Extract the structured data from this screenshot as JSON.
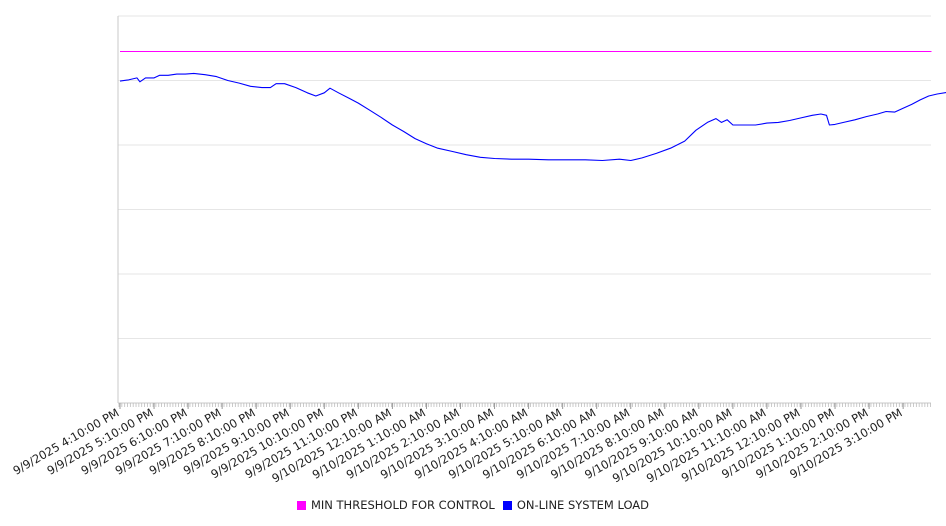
{
  "chart_data": {
    "type": "line",
    "title": "",
    "xlabel": "",
    "ylabel": "",
    "ylim": [
      0,
      6
    ],
    "grid": true,
    "legend_position": "bottom",
    "x_ticks": [
      "9/9/2025 4:10:00 PM",
      "9/9/2025 5:10:00 PM",
      "9/9/2025 6:10:00 PM",
      "9/9/2025 7:10:00 PM",
      "9/9/2025 8:10:00 PM",
      "9/9/2025 9:10:00 PM",
      "9/9/2025 10:10:00 PM",
      "9/9/2025 11:10:00 PM",
      "9/10/2025 12:10:00 AM",
      "9/10/2025 1:10:00 AM",
      "9/10/2025 2:10:00 AM",
      "9/10/2025 3:10:00 AM",
      "9/10/2025 4:10:00 AM",
      "9/10/2025 5:10:00 AM",
      "9/10/2025 6:10:00 AM",
      "9/10/2025 7:10:00 AM",
      "9/10/2025 8:10:00 AM",
      "9/10/2025 9:10:00 AM",
      "9/10/2025 10:10:00 AM",
      "9/10/2025 11:10:00 AM",
      "9/10/2025 12:10:00 PM",
      "9/10/2025 1:10:00 PM",
      "9/10/2025 2:10:00 PM",
      "9/10/2025 3:10:00 PM"
    ],
    "x_range": [
      "9/9/2025 4:10:00 PM",
      "9/10/2025 4:00:00 PM"
    ],
    "series": [
      {
        "name": "MIN THRESHOLD FOR CONTROL",
        "color": "#ff00ff",
        "points": [
          [
            "9/9/2025 4:10:00 PM",
            5.45
          ],
          [
            "9/10/2025 4:00:00 PM",
            5.45
          ]
        ]
      },
      {
        "name": "ON-LINE SYSTEM LOAD",
        "color": "#0000ff",
        "points": [
          [
            "9/9/2025 4:10:00 PM",
            4.99
          ],
          [
            "9/9/2025 4:25:00 PM",
            5.01
          ],
          [
            "9/9/2025 4:40:00 PM",
            5.04
          ],
          [
            "9/9/2025 4:45:00 PM",
            4.98
          ],
          [
            "9/9/2025 4:55:00 PM",
            5.04
          ],
          [
            "9/9/2025 5:10:00 PM",
            5.04
          ],
          [
            "9/9/2025 5:20:00 PM",
            5.08
          ],
          [
            "9/9/2025 5:35:00 PM",
            5.08
          ],
          [
            "9/9/2025 5:50:00 PM",
            5.1
          ],
          [
            "9/9/2025 6:05:00 PM",
            5.1
          ],
          [
            "9/9/2025 6:20:00 PM",
            5.11
          ],
          [
            "9/9/2025 6:40:00 PM",
            5.09
          ],
          [
            "9/9/2025 7:00:00 PM",
            5.06
          ],
          [
            "9/9/2025 7:20:00 PM",
            5.0
          ],
          [
            "9/9/2025 7:40:00 PM",
            4.96
          ],
          [
            "9/9/2025 8:00:00 PM",
            4.91
          ],
          [
            "9/9/2025 8:20:00 PM",
            4.89
          ],
          [
            "9/9/2025 8:35:00 PM",
            4.89
          ],
          [
            "9/9/2025 8:45:00 PM",
            4.95
          ],
          [
            "9/9/2025 9:00:00 PM",
            4.95
          ],
          [
            "9/9/2025 9:20:00 PM",
            4.89
          ],
          [
            "9/9/2025 9:40:00 PM",
            4.81
          ],
          [
            "9/9/2025 9:55:00 PM",
            4.76
          ],
          [
            "9/9/2025 10:10:00 PM",
            4.81
          ],
          [
            "9/9/2025 10:20:00 PM",
            4.88
          ],
          [
            "9/9/2025 10:35:00 PM",
            4.81
          ],
          [
            "9/9/2025 10:55:00 PM",
            4.72
          ],
          [
            "9/9/2025 11:10:00 PM",
            4.65
          ],
          [
            "9/9/2025 11:30:00 PM",
            4.54
          ],
          [
            "9/9/2025 11:50:00 PM",
            4.43
          ],
          [
            "9/10/2025 12:10:00 AM",
            4.31
          ],
          [
            "9/10/2025 12:30:00 AM",
            4.21
          ],
          [
            "9/10/2025 12:50:00 AM",
            4.1
          ],
          [
            "9/10/2025 1:10:00 AM",
            4.02
          ],
          [
            "9/10/2025 1:30:00 AM",
            3.95
          ],
          [
            "9/10/2025 1:55:00 AM",
            3.9
          ],
          [
            "9/10/2025 2:20:00 AM",
            3.85
          ],
          [
            "9/10/2025 2:45:00 AM",
            3.81
          ],
          [
            "9/10/2025 3:10:00 AM",
            3.79
          ],
          [
            "9/10/2025 3:40:00 AM",
            3.78
          ],
          [
            "9/10/2025 4:10:00 AM",
            3.78
          ],
          [
            "9/10/2025 4:45:00 AM",
            3.77
          ],
          [
            "9/10/2025 5:20:00 AM",
            3.77
          ],
          [
            "9/10/2025 5:50:00 AM",
            3.77
          ],
          [
            "9/10/2025 6:20:00 AM",
            3.76
          ],
          [
            "9/10/2025 6:50:00 AM",
            3.78
          ],
          [
            "9/10/2025 7:10:00 AM",
            3.76
          ],
          [
            "9/10/2025 7:30:00 AM",
            3.8
          ],
          [
            "9/10/2025 7:55:00 AM",
            3.87
          ],
          [
            "9/10/2025 8:20:00 AM",
            3.95
          ],
          [
            "9/10/2025 8:45:00 AM",
            4.06
          ],
          [
            "9/10/2025 9:05:00 AM",
            4.23
          ],
          [
            "9/10/2025 9:25:00 AM",
            4.35
          ],
          [
            "9/10/2025 9:40:00 AM",
            4.41
          ],
          [
            "9/10/2025 9:50:00 AM",
            4.35
          ],
          [
            "9/10/2025 10:00:00 AM",
            4.39
          ],
          [
            "9/10/2025 10:10:00 AM",
            4.31
          ],
          [
            "9/10/2025 10:30:00 AM",
            4.31
          ],
          [
            "9/10/2025 10:50:00 AM",
            4.31
          ],
          [
            "9/10/2025 11:10:00 AM",
            4.34
          ],
          [
            "9/10/2025 11:30:00 AM",
            4.35
          ],
          [
            "9/10/2025 11:50:00 AM",
            4.38
          ],
          [
            "9/10/2025 12:10:00 PM",
            4.42
          ],
          [
            "9/10/2025 12:30:00 PM",
            4.46
          ],
          [
            "9/10/2025 12:45:00 PM",
            4.48
          ],
          [
            "9/10/2025 12:55:00 PM",
            4.46
          ],
          [
            "9/10/2025 1:00:00 PM",
            4.31
          ],
          [
            "9/10/2025 1:10:00 PM",
            4.32
          ],
          [
            "9/10/2025 1:25:00 PM",
            4.35
          ],
          [
            "9/10/2025 1:45:00 PM",
            4.39
          ],
          [
            "9/10/2025 2:05:00 PM",
            4.44
          ],
          [
            "9/10/2025 2:25:00 PM",
            4.48
          ],
          [
            "9/10/2025 2:40:00 PM",
            4.52
          ],
          [
            "9/10/2025 2:55:00 PM",
            4.51
          ],
          [
            "9/10/2025 3:10:00 PM",
            4.57
          ],
          [
            "9/10/2025 3:25:00 PM",
            4.63
          ],
          [
            "9/10/2025 3:40:00 PM",
            4.7
          ],
          [
            "9/10/2025 3:55:00 PM",
            4.76
          ],
          [
            "9/10/2025 4:10:00 PM",
            4.79
          ],
          [
            "9/10/2025 4:30:00 PM",
            4.82
          ],
          [
            "9/10/2025 4:45:00 PM",
            4.86
          ],
          [
            "9/10/2025 5:00:00 PM",
            4.88
          ],
          [
            "9/10/2025 5:20:00 PM",
            4.9
          ],
          [
            "9/10/2025 5:40:00 PM",
            4.95
          ],
          [
            "9/10/2025 5:55:00 PM",
            4.97
          ],
          [
            "9/10/2025 6:10:00 PM",
            5.0
          ],
          [
            "9/10/2025 6:25:00 PM",
            5.02
          ]
        ]
      }
    ]
  }
}
